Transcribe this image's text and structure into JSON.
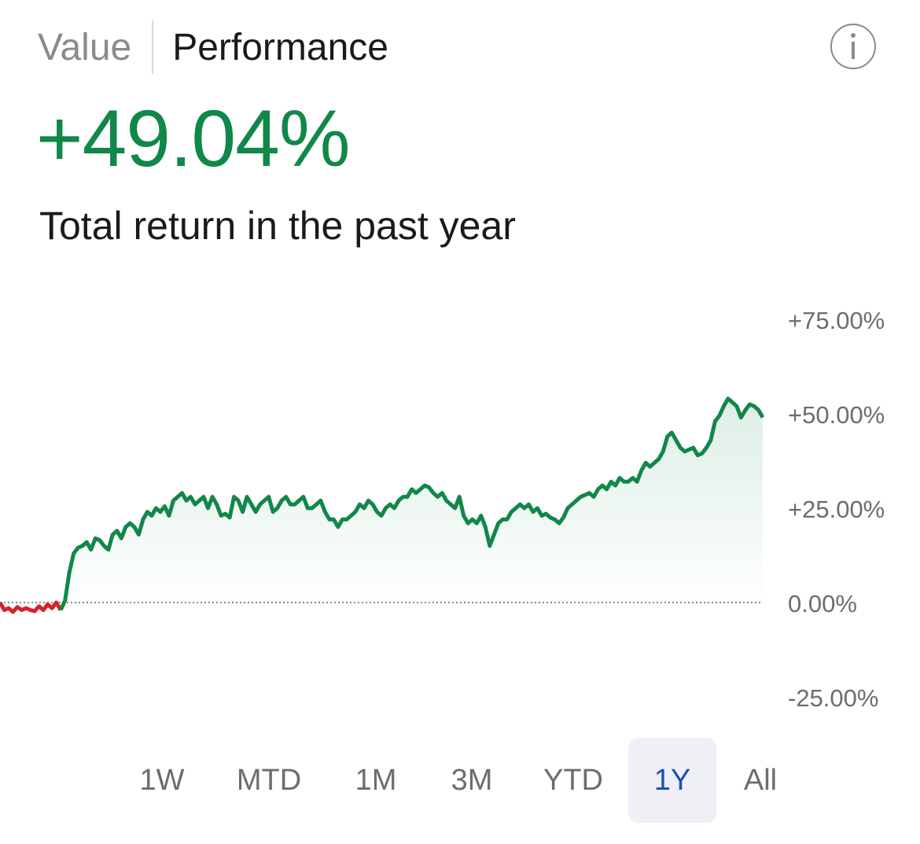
{
  "header": {
    "tabs": [
      {
        "label": "Value",
        "active": false
      },
      {
        "label": "Performance",
        "active": true
      }
    ],
    "info_icon": "info-icon",
    "info_label": "i"
  },
  "summary": {
    "headline": "+49.04%",
    "subtitle": "Total return in the past year"
  },
  "colors": {
    "positive": "#11874a",
    "negative": "#d5232f",
    "selected_range_text": "#1b4fb8",
    "selected_range_bg": "#eef0f5"
  },
  "chart_data": {
    "type": "area",
    "ylim": [
      -25,
      75
    ],
    "y_ticks": [
      "+75.00%",
      "+50.00%",
      "+25.00%",
      "0.00%",
      "-25.00%"
    ],
    "y_tick_values": [
      75,
      50,
      25,
      0,
      -25
    ],
    "baseline": 0,
    "grid": false,
    "series": [
      {
        "color_negative": "#d5232f",
        "color_positive": "#11874a",
        "values": [
          0,
          -2,
          -1.5,
          -2.5,
          -1.2,
          -2,
          -1.5,
          -2,
          -2.3,
          -1,
          -2,
          -0.5,
          -1.5,
          0,
          -2,
          0.5,
          8,
          13,
          14.5,
          15,
          16,
          14,
          17,
          16.5,
          15,
          14,
          18,
          19,
          17,
          20,
          21,
          20,
          18,
          22,
          24,
          23,
          25,
          24,
          25.5,
          23,
          27,
          28,
          29,
          27,
          28,
          26,
          27,
          28,
          25,
          28,
          26,
          23,
          23.5,
          22.5,
          28,
          27,
          24,
          28,
          26,
          24,
          26,
          27,
          28,
          24,
          25,
          27,
          28,
          26,
          26,
          27,
          28,
          25,
          25,
          26,
          27,
          24,
          22,
          22,
          20,
          22,
          22,
          23,
          24,
          26,
          25,
          27,
          26,
          24,
          23,
          25,
          26,
          25,
          27,
          28,
          28,
          30,
          29,
          30,
          31,
          30.5,
          29,
          28,
          29,
          27,
          26,
          25,
          28,
          23,
          21,
          22,
          21,
          23,
          20,
          15,
          18,
          21,
          22,
          22,
          24,
          25,
          26,
          25,
          26,
          24,
          25,
          23,
          23.5,
          22.5,
          22,
          21,
          22.5,
          25,
          26,
          27,
          28,
          28.5,
          29,
          28,
          30,
          31,
          30,
          32,
          31,
          33,
          32,
          32,
          33,
          32,
          35,
          37,
          36,
          37,
          38,
          40,
          44,
          45,
          43,
          41,
          40,
          40.5,
          41,
          39,
          39.5,
          41,
          43,
          48,
          49.5,
          52,
          54,
          53,
          52,
          49,
          51,
          52.5,
          52,
          51,
          49.04
        ]
      }
    ]
  },
  "ranges": {
    "options": [
      "1W",
      "MTD",
      "1M",
      "3M",
      "YTD",
      "1Y",
      "All"
    ],
    "selected": "1Y"
  }
}
